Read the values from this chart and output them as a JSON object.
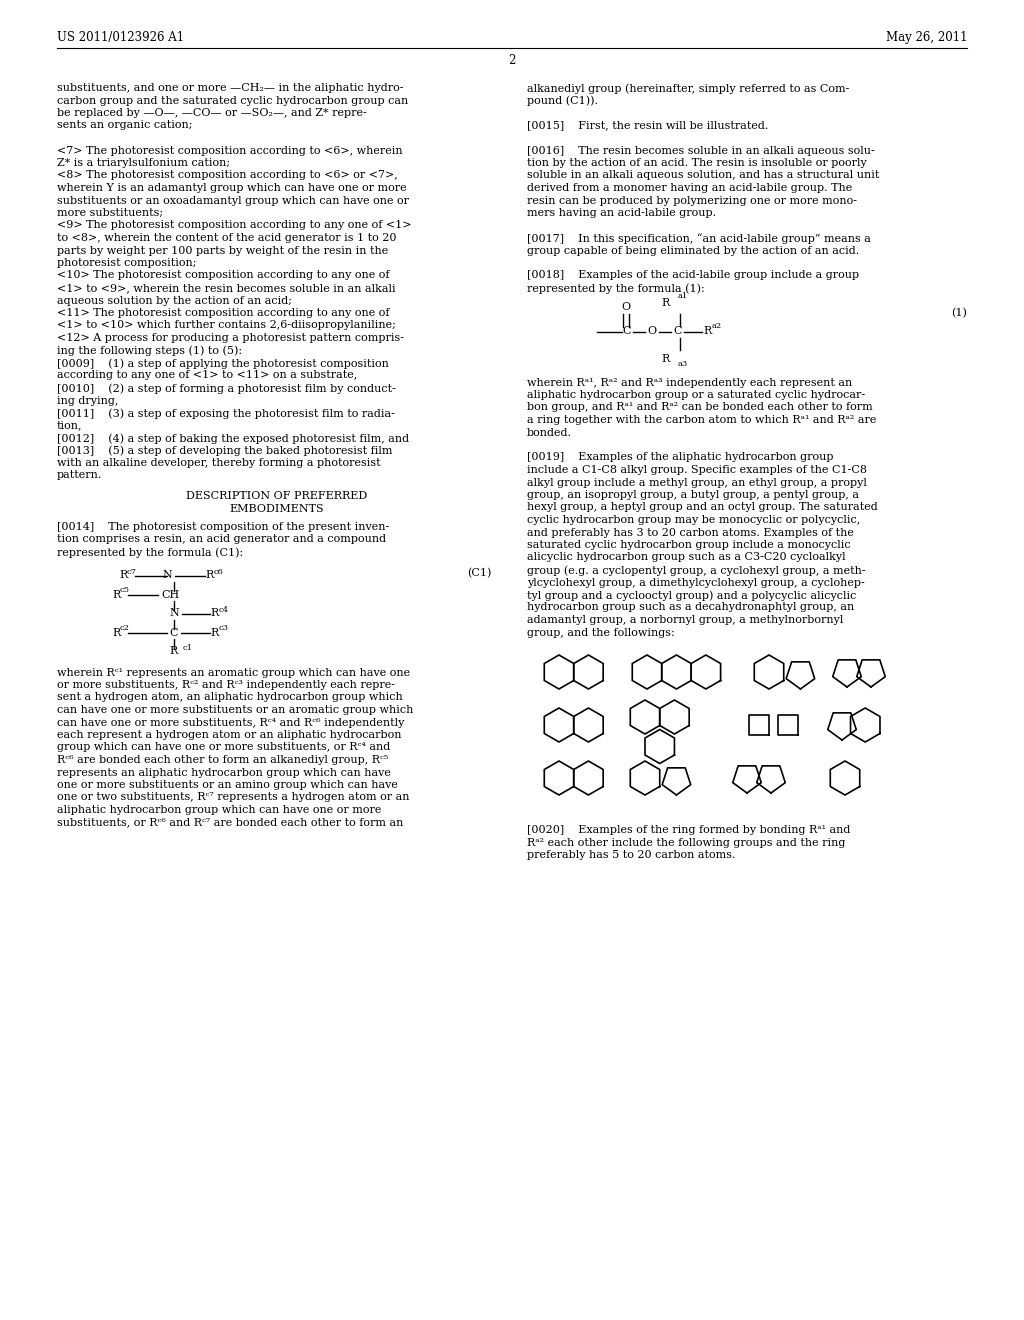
{
  "bg_color": "#ffffff",
  "header_left": "US 2011/0123926 A1",
  "header_right": "May 26, 2011",
  "page_number": "2",
  "left_col_lines": [
    "substituents, and one or more —CH₂— in the aliphatic hydro-",
    "carbon group and the saturated cyclic hydrocarbon group can",
    "be replaced by —O—, —CO— or —SO₂—, and Z* repre-",
    "sents an organic cation;",
    "",
    "<7> The photoresist composition according to <6>, wherein",
    "Z* is a triarylsulfonium cation;",
    "<8> The photoresist composition according to <6> or <7>,",
    "wherein Y is an adamantyl group which can have one or more",
    "substituents or an oxoadamantyl group which can have one or",
    "more substituents;",
    "<9> The photoresist composition according to any one of <1>",
    "to <8>, wherein the content of the acid generator is 1 to 20",
    "parts by weight per 100 parts by weight of the resin in the",
    "photoresist composition;",
    "<10> The photoresist composition according to any one of",
    "<1> to <9>, wherein the resin becomes soluble in an alkali",
    "aqueous solution by the action of an acid;",
    "<11> The photoresist composition according to any one of",
    "<1> to <10> which further contains 2,6-diisopropylaniline;",
    "<12> A process for producing a photoresist pattern compris-",
    "ing the following steps (1) to (5):",
    "[0009]    (1) a step of applying the photoresist composition",
    "according to any one of <1> to <11> on a substrate,",
    "[0010]    (2) a step of forming a photoresist film by conduct-",
    "ing drying,",
    "[0011]    (3) a step of exposing the photoresist film to radia-",
    "tion,",
    "[0012]    (4) a step of baking the exposed photoresist film, and",
    "[0013]    (5) a step of developing the baked photoresist film",
    "with an alkaline developer, thereby forming a photoresist",
    "pattern."
  ],
  "right_col_lines": [
    "alkanediyl group (hereinafter, simply referred to as Com-",
    "pound (C1)).",
    "",
    "[0015]    First, the resin will be illustrated.",
    "",
    "[0016]    The resin becomes soluble in an alkali aqueous solu-",
    "tion by the action of an acid. The resin is insoluble or poorly",
    "soluble in an alkali aqueous solution, and has a structural unit",
    "derived from a monomer having an acid-labile group. The",
    "resin can be produced by polymerizing one or more mono-",
    "mers having an acid-labile group.",
    "",
    "[0017]    In this specification, “an acid-labile group” means a",
    "group capable of being eliminated by the action of an acid.",
    "",
    "[0018]    Examples of the acid-labile group include a group",
    "represented by the formula (1):"
  ],
  "left_col_after_lines": [
    "wherein Rᶜ¹ represents an aromatic group which can have one",
    "or more substituents, Rᶜ² and Rᶜ³ independently each repre-",
    "sent a hydrogen atom, an aliphatic hydrocarbon group which",
    "can have one or more substituents or an aromatic group which",
    "can have one or more substituents, Rᶜ⁴ and Rᶜ⁶ independently",
    "each represent a hydrogen atom or an aliphatic hydrocarbon",
    "group which can have one or more substituents, or Rᶜ⁴ and",
    "Rᶜ⁶ are bonded each other to form an alkanediyl group, Rᶜ⁵",
    "represents an aliphatic hydrocarbon group which can have",
    "one or more substituents or an amino group which can have",
    "one or two substituents, Rᶜ⁷ represents a hydrogen atom or an",
    "aliphatic hydrocarbon group which can have one or more",
    "substituents, or Rᶜ⁶ and Rᶜ⁷ are bonded each other to form an"
  ],
  "right_col_after_lines": [
    "wherein Rᵃ¹, Rᵃ² and Rᵃ³ independently each represent an",
    "aliphatic hydrocarbon group or a saturated cyclic hydrocar-",
    "bon group, and Rᵃ¹ and Rᵃ² can be bonded each other to form",
    "a ring together with the carbon atom to which Rᵃ¹ and Rᵃ² are",
    "bonded.",
    "",
    "[0019]    Examples of the aliphatic hydrocarbon group",
    "include a C1-C8 alkyl group. Specific examples of the C1-C8",
    "alkyl group include a methyl group, an ethyl group, a propyl",
    "group, an isopropyl group, a butyl group, a pentyl group, a",
    "hexyl group, a heptyl group and an octyl group. The saturated",
    "cyclic hydrocarbon group may be monocyclic or polycyclic,",
    "and preferably has 3 to 20 carbon atoms. Examples of the",
    "saturated cyclic hydrocarbon group include a monocyclic",
    "alicyclic hydrocarbon group such as a C3-C20 cycloalkyl",
    "group (e.g. a cyclopentyl group, a cyclohexyl group, a meth-",
    "ylcyclohexyl group, a dimethylcyclohexyl group, a cyclohep-",
    "tyl group and a cyclooctyl group) and a polycyclic alicyclic",
    "hydrocarbon group such as a decahydronaphtyl group, an",
    "adamantyl group, a norbornyl group, a methylnorbornyl",
    "group, and the followings:"
  ],
  "bottom_right_lines": [
    "[0020]    Examples of the ring formed by bonding Rᵃ¹ and",
    "Rᵃ² each other include the following groups and the ring",
    "preferably has 5 to 20 carbon atoms."
  ]
}
